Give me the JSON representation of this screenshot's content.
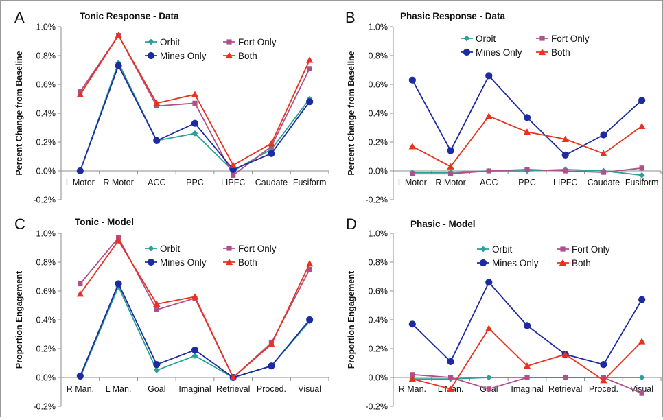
{
  "colors": {
    "Orbit": "#2aa198",
    "Fort Only": "#b0508a",
    "Mines Only": "#1c2ba0",
    "Both": "#e8321f",
    "axis": "#8c8c8c"
  },
  "chart_data": [
    {
      "type": "line",
      "panel_letter": "A",
      "title": "Tonic Response - Data",
      "ylabel": "Percent Change from Baseline",
      "xlabel": "",
      "ylim": [
        -0.2,
        1.0
      ],
      "yticks": [
        "-0.2%",
        "0.0%",
        "0.2%",
        "0.4%",
        "0.6%",
        "0.8%",
        "1.0%"
      ],
      "categories": [
        "L Motor",
        "R Motor",
        "ACC",
        "PPC",
        "LIPFC",
        "Caudate",
        "Fusiform"
      ],
      "grid": false,
      "legend": "top-right",
      "series": [
        {
          "name": "Orbit",
          "marker": "diamond",
          "values": [
            0.0,
            0.75,
            0.21,
            0.26,
            0.0,
            0.15,
            0.5
          ]
        },
        {
          "name": "Fort Only",
          "marker": "square",
          "values": [
            0.55,
            0.94,
            0.45,
            0.47,
            -0.03,
            0.17,
            0.71
          ]
        },
        {
          "name": "Mines Only",
          "marker": "circle",
          "values": [
            0.0,
            0.73,
            0.21,
            0.33,
            0.01,
            0.12,
            0.48
          ]
        },
        {
          "name": "Both",
          "marker": "triangle",
          "values": [
            0.53,
            0.94,
            0.47,
            0.53,
            0.04,
            0.19,
            0.77
          ]
        }
      ]
    },
    {
      "type": "line",
      "panel_letter": "B",
      "title": "Phasic Response - Data",
      "ylabel": "Percent Change from Baseline",
      "xlabel": "",
      "ylim": [
        -0.2,
        1.0
      ],
      "yticks": [
        "-0.2%",
        "0.0%",
        "0.2%",
        "0.4%",
        "0.6%",
        "0.8%",
        "1.0%"
      ],
      "categories": [
        "L Motor",
        "R Motor",
        "ACC",
        "PPC",
        "LIPFC",
        "Caudate",
        "Fusiform"
      ],
      "grid": false,
      "legend": "top-right",
      "series": [
        {
          "name": "Orbit",
          "marker": "diamond",
          "values": [
            -0.01,
            -0.01,
            0.0,
            0.0,
            0.01,
            0.0,
            -0.03
          ]
        },
        {
          "name": "Fort Only",
          "marker": "square",
          "values": [
            -0.02,
            -0.02,
            0.0,
            0.01,
            0.0,
            -0.01,
            0.02
          ]
        },
        {
          "name": "Mines Only",
          "marker": "circle",
          "values": [
            0.63,
            0.14,
            0.66,
            0.37,
            0.11,
            0.25,
            0.49
          ]
        },
        {
          "name": "Both",
          "marker": "triangle",
          "values": [
            0.17,
            0.03,
            0.38,
            0.27,
            0.22,
            0.12,
            0.31
          ]
        }
      ]
    },
    {
      "type": "line",
      "panel_letter": "C",
      "title": "Tonic - Model",
      "ylabel": "Proportion Engagement",
      "xlabel": "",
      "ylim": [
        -0.2,
        1.0
      ],
      "yticks": [
        "-0.2%",
        "0.0%",
        "0.2%",
        "0.4%",
        "0.6%",
        "0.8%",
        "1.0%"
      ],
      "categories": [
        "R Man.",
        "L Man.",
        "Goal",
        "Imaginal",
        "Retrieval",
        "Proced.",
        "Visual"
      ],
      "grid": false,
      "legend": "top-right",
      "series": [
        {
          "name": "Orbit",
          "marker": "diamond",
          "values": [
            0.0,
            0.63,
            0.05,
            0.15,
            0.0,
            0.08,
            0.39
          ]
        },
        {
          "name": "Fort Only",
          "marker": "square",
          "values": [
            0.65,
            0.97,
            0.47,
            0.55,
            0.0,
            0.24,
            0.75
          ]
        },
        {
          "name": "Mines Only",
          "marker": "circle",
          "values": [
            0.01,
            0.65,
            0.09,
            0.19,
            0.0,
            0.08,
            0.4
          ]
        },
        {
          "name": "Both",
          "marker": "triangle",
          "values": [
            0.58,
            0.95,
            0.51,
            0.56,
            0.0,
            0.23,
            0.79
          ]
        }
      ]
    },
    {
      "type": "line",
      "panel_letter": "D",
      "title": "Phasic - Model",
      "ylabel": "Proportion Engagement",
      "xlabel": "",
      "ylim": [
        -0.2,
        1.0
      ],
      "yticks": [
        "-0.2%",
        "0.0%",
        "0.2%",
        "0.4%",
        "0.6%",
        "0.8%",
        "1.0%"
      ],
      "categories": [
        "R Man.",
        "L Man.",
        "Goal",
        "Imaginal",
        "Retrieval",
        "Proced.",
        "Visual"
      ],
      "grid": false,
      "legend": "top-right",
      "series": [
        {
          "name": "Orbit",
          "marker": "diamond",
          "values": [
            -0.01,
            -0.01,
            0.0,
            0.0,
            0.0,
            0.0,
            0.0
          ]
        },
        {
          "name": "Fort Only",
          "marker": "square",
          "values": [
            0.02,
            0.0,
            -0.08,
            0.0,
            0.0,
            0.0,
            -0.11
          ]
        },
        {
          "name": "Mines Only",
          "marker": "circle",
          "values": [
            0.37,
            0.11,
            0.66,
            0.36,
            0.16,
            0.09,
            0.54
          ]
        },
        {
          "name": "Both",
          "marker": "triangle",
          "values": [
            -0.01,
            -0.08,
            0.34,
            0.08,
            0.16,
            -0.02,
            0.25
          ]
        }
      ]
    }
  ]
}
